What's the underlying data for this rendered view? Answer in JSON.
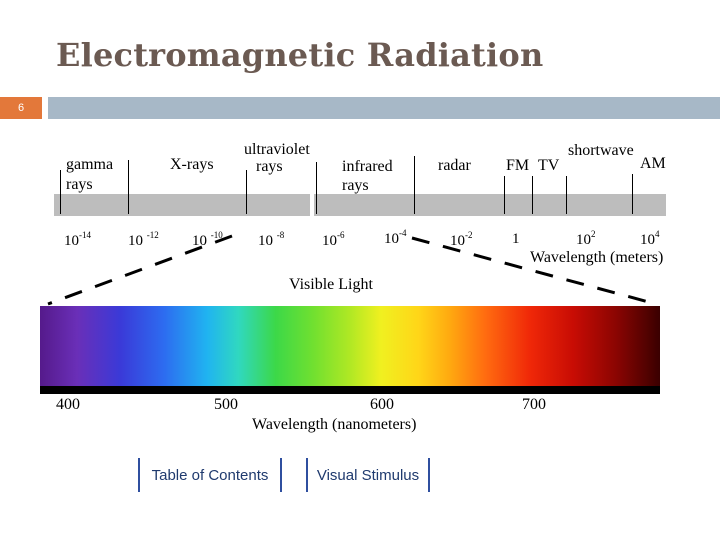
{
  "slide": {
    "title": "Electromagnetic Radiation",
    "number": "6"
  },
  "spectrum": {
    "bands": [
      "gamma rays",
      "X-rays",
      "ultraviolet rays",
      "infrared rays",
      "radar",
      "FM",
      "TV",
      "shortwave",
      "AM"
    ],
    "gamma": [
      "gamma",
      "rays"
    ],
    "uv": [
      "ultraviolet",
      "rays"
    ],
    "infrared": [
      "infrared",
      "rays"
    ],
    "xrays": "X-rays",
    "radar": "radar",
    "fm": "FM",
    "tv": "TV",
    "shortwave": "shortwave",
    "am": "AM",
    "scale": [
      {
        "base": "10",
        "exp": "-14"
      },
      {
        "base": "10",
        "exp": "-12"
      },
      {
        "base": "10",
        "exp": "-10"
      },
      {
        "base": "10",
        "exp": "-8"
      },
      {
        "base": "10",
        "exp": "-6"
      },
      {
        "base": "10",
        "exp": "-4"
      },
      {
        "base": "10",
        "exp": "-2"
      },
      {
        "base": "1",
        "exp": ""
      },
      {
        "base": "10",
        "exp": "2"
      },
      {
        "base": "10",
        "exp": "4"
      }
    ],
    "axis_label": "Wavelength (meters)"
  },
  "visible": {
    "title": "Visible Light",
    "ticks": [
      "400",
      "500",
      "600",
      "700"
    ],
    "axis_label": "Wavelength (nanometers)"
  },
  "nav": {
    "toc": "Table of Contents",
    "stimulus": "Visual Stimulus"
  },
  "colors": {
    "title": "#6b5a52",
    "slide_badge": "#e3783a",
    "header_bar": "#a7b8c7",
    "link": "#1f3a6e"
  }
}
